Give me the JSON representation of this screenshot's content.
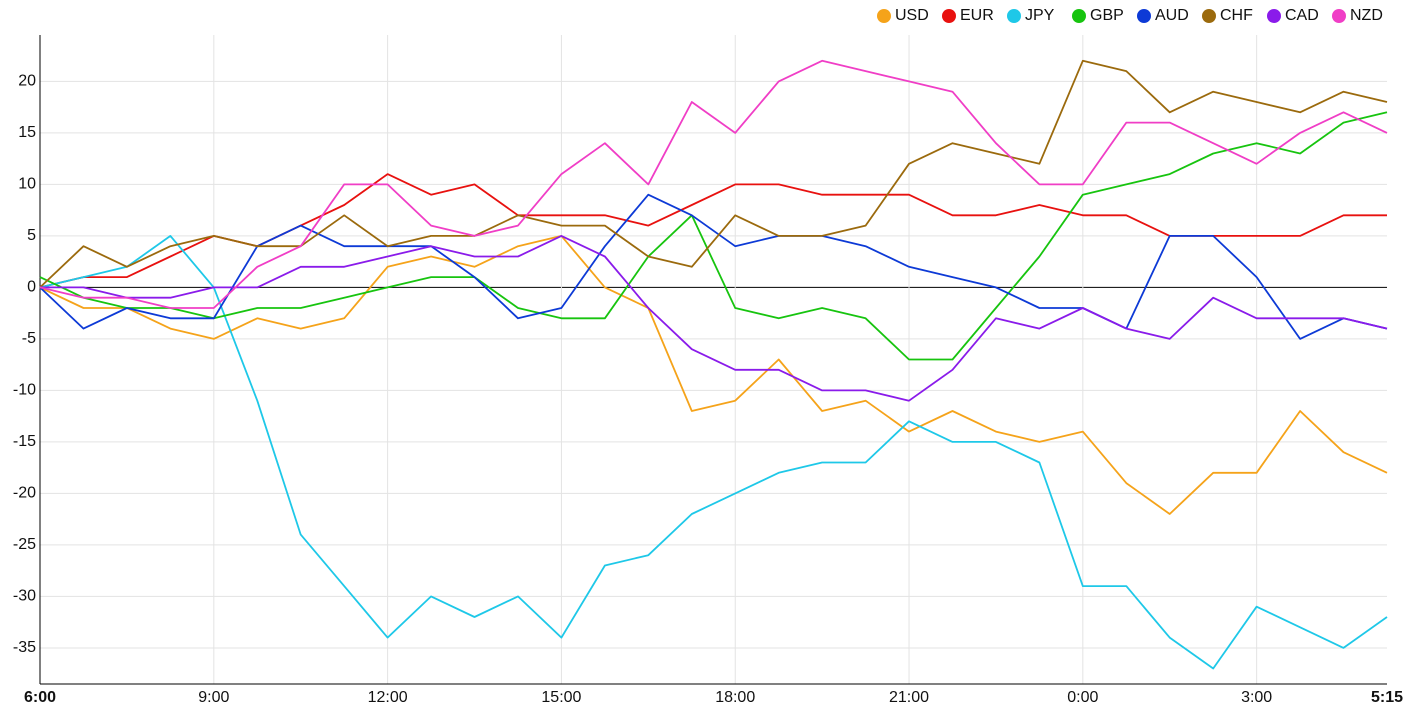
{
  "chart_data": {
    "type": "line",
    "categories": [
      "6:00",
      null,
      null,
      null,
      "9:00",
      null,
      null,
      null,
      "12:00",
      null,
      null,
      null,
      "15:00",
      null,
      null,
      null,
      "18:00",
      null,
      null,
      null,
      "21:00",
      null,
      null,
      null,
      "0:00",
      null,
      null,
      null,
      "3:00",
      null,
      null,
      "5:15"
    ],
    "series": [
      {
        "name": "USD",
        "color": "#f5a31a",
        "values": [
          0,
          -2,
          -2,
          -4,
          -5,
          -3,
          -4,
          -3,
          2,
          3,
          2,
          4,
          5,
          0,
          -2,
          -12,
          -11,
          -7,
          -12,
          -11,
          -14,
          -12,
          -14,
          -15,
          -14,
          -19,
          -22,
          -18,
          -18,
          -12,
          -16,
          -18
        ]
      },
      {
        "name": "EUR",
        "color": "#e8110f",
        "values": [
          0,
          1,
          1,
          3,
          5,
          4,
          6,
          8,
          11,
          9,
          10,
          7,
          7,
          7,
          6,
          8,
          10,
          10,
          9,
          9,
          9,
          7,
          7,
          8,
          7,
          7,
          5,
          5,
          5,
          5,
          7,
          7
        ]
      },
      {
        "name": "JPY",
        "color": "#1ec8e8",
        "values": [
          0,
          1,
          2,
          5,
          0,
          -11,
          -24,
          -29,
          -34,
          -30,
          -32,
          -30,
          -34,
          -27,
          -26,
          -22,
          -20,
          -18,
          -17,
          -17,
          -13,
          -15,
          -15,
          -17,
          -29,
          -29,
          -34,
          -37,
          -31,
          -33,
          -35,
          -32
        ]
      },
      {
        "name": "GBP",
        "color": "#17c40f",
        "values": [
          1,
          -1,
          -2,
          -2,
          -3,
          -2,
          -2,
          -1,
          0,
          1,
          1,
          -2,
          -3,
          -3,
          3,
          7,
          -2,
          -3,
          -2,
          -3,
          -7,
          -7,
          -2,
          3,
          9,
          10,
          11,
          13,
          14,
          13,
          16,
          17
        ]
      },
      {
        "name": "AUD",
        "color": "#0d3ad6",
        "values": [
          0,
          -4,
          -2,
          -3,
          -3,
          4,
          6,
          4,
          4,
          4,
          1,
          -3,
          -2,
          4,
          9,
          7,
          4,
          5,
          5,
          4,
          2,
          1,
          0,
          -2,
          -2,
          -4,
          5,
          5,
          1,
          -5,
          -3,
          -4
        ]
      },
      {
        "name": "CHF",
        "color": "#9b6a0d",
        "values": [
          0,
          4,
          2,
          4,
          5,
          4,
          4,
          7,
          4,
          5,
          5,
          7,
          6,
          6,
          3,
          2,
          7,
          5,
          5,
          6,
          12,
          14,
          13,
          12,
          22,
          21,
          17,
          19,
          18,
          17,
          19,
          18
        ]
      },
      {
        "name": "CAD",
        "color": "#8a1bea",
        "values": [
          0,
          0,
          -1,
          -1,
          0,
          0,
          2,
          2,
          3,
          4,
          3,
          3,
          5,
          3,
          -2,
          -6,
          -8,
          -8,
          -10,
          -10,
          -11,
          -8,
          -3,
          -4,
          -2,
          -4,
          -5,
          -1,
          -3,
          -3,
          -3,
          -4
        ]
      },
      {
        "name": "NZD",
        "color": "#f03ec6",
        "values": [
          0,
          -1,
          -1,
          -2,
          -2,
          2,
          4,
          10,
          10,
          6,
          5,
          6,
          11,
          14,
          10,
          18,
          15,
          20,
          22,
          21,
          20,
          19,
          14,
          10,
          10,
          16,
          16,
          14,
          12,
          15,
          17,
          15
        ]
      }
    ],
    "ylim": [
      -38.5,
      24.5
    ],
    "yticks": [
      -35,
      -30,
      -25,
      -20,
      -15,
      -10,
      -5,
      0,
      5,
      10,
      15,
      20
    ],
    "grid": true,
    "legend": "top-right"
  }
}
